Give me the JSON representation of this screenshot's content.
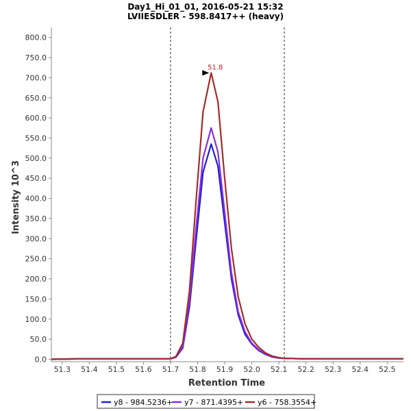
{
  "chart_data": {
    "type": "line",
    "title": "Day1_Hi_01_01, 2016-05-21 15:32",
    "subtitle": "LVIIESDLER - 598.8417++ (heavy)",
    "xlabel": "Retention Time",
    "ylabel": "Intensity 10^3",
    "xlim": [
      51.26,
      52.56
    ],
    "ylim": [
      -6,
      825
    ],
    "x_ticks": [
      "51.3",
      "51.4",
      "51.5",
      "51.6",
      "51.7",
      "51.8",
      "51.9",
      "52.0",
      "52.1",
      "52.2",
      "52.3",
      "52.4",
      "52.5"
    ],
    "x_tick_values": [
      51.3,
      51.4,
      51.5,
      51.6,
      51.7,
      51.8,
      51.9,
      52.0,
      52.1,
      52.2,
      52.3,
      52.4,
      52.5
    ],
    "y_ticks": [
      "0.0",
      "50.0",
      "100.0",
      "150.0",
      "200.0",
      "250.0",
      "300.0",
      "350.0",
      "400.0",
      "450.0",
      "500.0",
      "550.0",
      "600.0",
      "650.0",
      "700.0",
      "750.0",
      "800.0"
    ],
    "y_tick_values": [
      0,
      50,
      100,
      150,
      200,
      250,
      300,
      350,
      400,
      450,
      500,
      550,
      600,
      650,
      700,
      750,
      800
    ],
    "vertical_markers": [
      51.7,
      52.12
    ],
    "peak_annotation": {
      "label": "51.8",
      "x": 51.85,
      "y": 712,
      "color": "#b22222"
    },
    "legend_position": "bottom-center",
    "series": [
      {
        "name": "y8 - 984.5236+",
        "color": "#1f1fd6",
        "x": [
          51.26,
          51.35,
          51.5,
          51.7,
          51.72,
          51.745,
          51.77,
          51.795,
          51.82,
          51.85,
          51.875,
          51.9,
          51.925,
          51.95,
          51.975,
          52.0,
          52.025,
          52.05,
          52.075,
          52.1,
          52.12,
          52.14,
          52.2,
          52.35,
          52.56
        ],
        "y": [
          0,
          1,
          1,
          1,
          5,
          28,
          130,
          300,
          465,
          535,
          480,
          340,
          200,
          110,
          62,
          38,
          22,
          12,
          6,
          3,
          2,
          2,
          1,
          1,
          1
        ]
      },
      {
        "name": "y7 - 871.4395+",
        "color": "#8a2be2",
        "x": [
          51.26,
          51.35,
          51.5,
          51.7,
          51.72,
          51.745,
          51.77,
          51.795,
          51.82,
          51.85,
          51.875,
          51.9,
          51.925,
          51.95,
          51.975,
          52.0,
          52.025,
          52.05,
          52.075,
          52.1,
          52.12,
          52.14,
          52.2,
          52.35,
          52.56
        ],
        "y": [
          0,
          1,
          1,
          1,
          6,
          32,
          145,
          330,
          500,
          575,
          515,
          365,
          215,
          118,
          68,
          40,
          24,
          13,
          7,
          4,
          2,
          2,
          1,
          1,
          1
        ]
      },
      {
        "name": "y6 - 758.3554+",
        "color": "#a52a2a",
        "x": [
          51.26,
          51.35,
          51.5,
          51.7,
          51.72,
          51.745,
          51.77,
          51.795,
          51.82,
          51.85,
          51.875,
          51.9,
          51.925,
          51.95,
          51.975,
          52.0,
          52.025,
          52.05,
          52.075,
          52.1,
          52.12,
          52.14,
          52.2,
          52.35,
          52.56
        ],
        "y": [
          0,
          1,
          1,
          1,
          7,
          40,
          170,
          400,
          615,
          712,
          640,
          450,
          275,
          155,
          88,
          50,
          30,
          16,
          8,
          4,
          2,
          2,
          1,
          1,
          1
        ]
      }
    ]
  }
}
